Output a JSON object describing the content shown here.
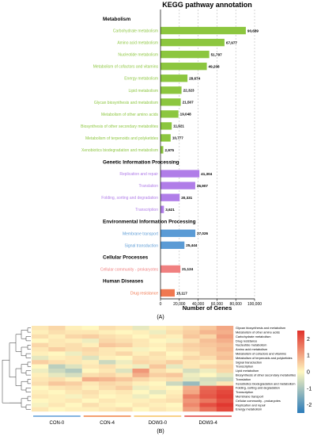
{
  "panel_a": {
    "title": "KEGG pathway annotation",
    "panel_label": "(A)",
    "xlabel": "Number of Genes"
  },
  "panel_b": {
    "panel_label": "(B)"
  },
  "colors": {
    "metabolism": "#8cc63f",
    "genetic": "#b07de8",
    "environmental": "#5b9bd5",
    "cellular": "#f08080",
    "disease": "#f07850"
  },
  "chart_data": [
    {
      "type": "bar",
      "orientation": "horizontal",
      "title": "KEGG pathway annotation",
      "xlabel": "Number of Genes",
      "xlim": [
        0,
        100000
      ],
      "xticks": [
        "0",
        "20,000",
        "40,000",
        "60,000",
        "80,000",
        "100,000"
      ],
      "grid": "dashed vertical",
      "groups": [
        {
          "name": "Metabolism",
          "color": "#8cc63f",
          "items": [
            {
              "label": "Carbohydrate metabolism",
              "value": 90689,
              "value_label": "90,689"
            },
            {
              "label": "Amino acid metabolism",
              "value": 67977,
              "value_label": "67,977"
            },
            {
              "label": "Nucleotide metabolism",
              "value": 51797,
              "value_label": "51,797"
            },
            {
              "label": "Metabolism of cofactors and vitamins",
              "value": 49208,
              "value_label": "49,208"
            },
            {
              "label": "Energy metabolism",
              "value": 28674,
              "value_label": "28,674"
            },
            {
              "label": "Lipid metabolism",
              "value": 22323,
              "value_label": "22,323"
            },
            {
              "label": "Glycan biosynthesis and metabolism",
              "value": 21507,
              "value_label": "21,507"
            },
            {
              "label": "Metabolism of other amino acids",
              "value": 19048,
              "value_label": "19,048"
            },
            {
              "label": "Biosynthesis of other secondary metabolites",
              "value": 11921,
              "value_label": "11,921"
            },
            {
              "label": "Metabolism of terpenoids and polyketides",
              "value": 10777,
              "value_label": "10,777"
            },
            {
              "label": "Xenobiotics biodegradation and metabolism",
              "value": 2975,
              "value_label": "2,975"
            }
          ]
        },
        {
          "name": "Genetic Information Processing",
          "color": "#b07de8",
          "items": [
            {
              "label": "Replication and repair",
              "value": 41304,
              "value_label": "41,304"
            },
            {
              "label": "Translation",
              "value": 36907,
              "value_label": "36,907"
            },
            {
              "label": "Folding, sorting and degradation",
              "value": 20331,
              "value_label": "20,331"
            },
            {
              "label": "Transcription",
              "value": 3621,
              "value_label": "3,621"
            }
          ]
        },
        {
          "name": "Environmental Information Processing",
          "color": "#5b9bd5",
          "items": [
            {
              "label": "Membrane transport",
              "value": 37026,
              "value_label": "37,026"
            },
            {
              "label": "Signal transduction",
              "value": 25444,
              "value_label": "25,444"
            }
          ]
        },
        {
          "name": "Cellular Processes",
          "color": "#f08080",
          "items": [
            {
              "label": "Cellular community - prokaryotes",
              "value": 21124,
              "value_label": "21,124"
            }
          ]
        },
        {
          "name": "Human Diseases",
          "color": "#f07850",
          "items": [
            {
              "label": "Drug resistance",
              "value": 15117,
              "value_label": "15,117"
            }
          ]
        }
      ]
    },
    {
      "type": "heatmap",
      "groups": [
        {
          "name": "CON-0",
          "color": "#5b9bd5",
          "columns": 3
        },
        {
          "name": "CON-4",
          "color": "#f08040",
          "columns": 3
        },
        {
          "name": "DOW3-0",
          "color": "#f5c060",
          "columns": 3
        },
        {
          "name": "DOW3-4",
          "color": "#e0403a",
          "columns": 3
        }
      ],
      "rows": [
        "Glycan biosynthesis and metabolism",
        "Metabolism of other amino acids",
        "Carbohydrate metabolism",
        "Drug resistance",
        "Nucleotide metabolism",
        "Amino acid metabolism",
        "Metabolism of cofactors and vitamins",
        "Metabolism of terpenoids and polyketides",
        "Signal transduction",
        "Transcription",
        "Lipid metabolism",
        "Biosynthesis of other secondary metabolites",
        "Translation",
        "Xenobiotics biodegradation and metabolism",
        "Folding, sorting and degradation",
        "Transcription",
        "Membrane transport",
        "Cellular community - prokaryotes",
        "Replication and repair",
        "Energy metabolism"
      ],
      "colorbar": {
        "min": -2.5,
        "max": 2.5,
        "ticks": [
          "2",
          "1",
          "0",
          "-1",
          "-2"
        ],
        "low_color": "#2b7bba",
        "mid_color": "#fff7c0",
        "high_color": "#e0302a"
      },
      "values": [
        [
          0.2,
          0.4,
          0.1,
          0.0,
          0.3,
          0.2,
          -0.3,
          0.1,
          0.2,
          0.4,
          0.6,
          1.0
        ],
        [
          0.1,
          0.3,
          0.2,
          0.2,
          0.1,
          0.0,
          0.1,
          -0.2,
          0.3,
          0.5,
          0.8,
          0.9
        ],
        [
          0.3,
          0.1,
          0.4,
          0.5,
          0.3,
          0.2,
          0.0,
          0.2,
          0.1,
          0.6,
          0.4,
          1.1
        ],
        [
          0.0,
          0.2,
          0.1,
          -0.2,
          0.4,
          0.3,
          0.2,
          0.0,
          -0.1,
          0.3,
          0.7,
          0.9
        ],
        [
          0.4,
          0.2,
          0.3,
          0.1,
          0.6,
          0.5,
          0.2,
          0.1,
          0.3,
          0.5,
          0.6,
          0.7
        ],
        [
          0.2,
          0.5,
          0.3,
          0.4,
          0.2,
          0.1,
          -0.1,
          0.0,
          0.2,
          0.4,
          0.5,
          0.8
        ],
        [
          0.1,
          0.0,
          -0.2,
          0.3,
          0.2,
          0.4,
          0.1,
          0.3,
          0.0,
          0.2,
          0.5,
          0.6
        ],
        [
          -0.3,
          0.1,
          0.2,
          -0.4,
          0.1,
          0.0,
          0.3,
          0.2,
          0.1,
          0.4,
          0.3,
          0.7
        ],
        [
          0.5,
          0.3,
          0.2,
          0.1,
          -0.6,
          -0.2,
          0.4,
          0.3,
          0.5,
          0.2,
          0.1,
          0.3
        ],
        [
          0.0,
          -0.8,
          -0.4,
          0.2,
          0.3,
          0.1,
          -0.2,
          0.6,
          -0.3,
          0.2,
          0.4,
          0.5
        ],
        [
          -0.2,
          -0.6,
          -0.9,
          0.0,
          0.2,
          -0.4,
          1.2,
          0.3,
          0.1,
          -0.5,
          -0.2,
          0.4
        ],
        [
          0.1,
          -0.3,
          -0.5,
          0.3,
          0.4,
          0.2,
          0.9,
          0.5,
          0.6,
          -0.2,
          0.0,
          -0.3
        ],
        [
          0.2,
          0.3,
          0.1,
          0.9,
          0.8,
          0.6,
          0.4,
          0.2,
          0.3,
          -0.3,
          -0.5,
          -0.6
        ],
        [
          0.3,
          0.6,
          0.5,
          0.2,
          0.4,
          0.3,
          0.1,
          0.0,
          -0.6,
          -1.2,
          -0.4,
          0.2
        ],
        [
          0.0,
          0.2,
          0.3,
          0.1,
          0.3,
          0.5,
          -0.2,
          0.1,
          0.0,
          0.9,
          1.8,
          2.0
        ],
        [
          0.1,
          0.0,
          0.2,
          0.3,
          0.1,
          0.2,
          0.0,
          -0.3,
          0.1,
          1.0,
          1.9,
          2.2
        ],
        [
          0.2,
          0.1,
          -0.1,
          0.2,
          0.0,
          0.1,
          -0.2,
          0.0,
          0.2,
          1.5,
          2.0,
          2.3
        ],
        [
          0.0,
          0.1,
          0.2,
          0.0,
          0.2,
          0.1,
          0.1,
          0.2,
          0.3,
          1.2,
          1.6,
          2.1
        ],
        [
          -0.1,
          0.2,
          0.0,
          0.3,
          0.1,
          0.0,
          0.2,
          0.1,
          0.0,
          1.4,
          2.1,
          2.4
        ],
        [
          0.2,
          0.0,
          0.1,
          0.1,
          0.2,
          0.3,
          0.0,
          0.2,
          0.1,
          1.1,
          1.7,
          2.2
        ]
      ]
    }
  ]
}
